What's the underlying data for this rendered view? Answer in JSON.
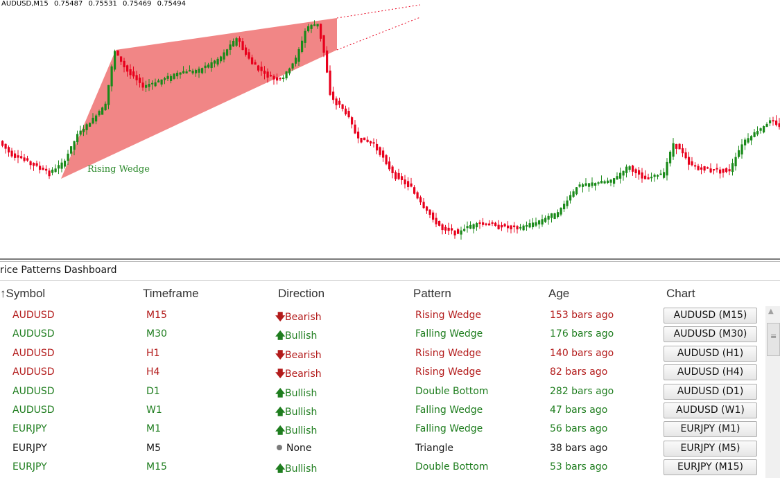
{
  "chart": {
    "symbol_tf": "AUDUSD,M15",
    "open": "0.75487",
    "high": "0.75531",
    "low": "0.75469",
    "close": "0.75494",
    "pattern_label": "Rising Wedge",
    "colors": {
      "bull": "#1a8a1a",
      "bear": "#e8001c",
      "wedge_fill": "#f08080",
      "projection": "#e8001c"
    }
  },
  "panel": {
    "title": "rice Patterns Dashboard",
    "headers": {
      "symbol": "Symbol",
      "sort_icon": "↑",
      "timeframe": "Timeframe",
      "direction": "Direction",
      "pattern": "Pattern",
      "age": "Age",
      "chart": "Chart"
    },
    "rows": [
      {
        "symbol": "AUDUSD",
        "timeframe": "M15",
        "direction": "Bearish",
        "pattern": "Rising Wedge",
        "age": "153 bars ago",
        "chart": "AUDUSD (M15)",
        "type": "bear"
      },
      {
        "symbol": "AUDUSD",
        "timeframe": "M30",
        "direction": "Bullish",
        "pattern": "Falling Wedge",
        "age": "176 bars ago",
        "chart": "AUDUSD (M30)",
        "type": "bull"
      },
      {
        "symbol": "AUDUSD",
        "timeframe": "H1",
        "direction": "Bearish",
        "pattern": "Rising Wedge",
        "age": "140 bars ago",
        "chart": "AUDUSD (H1)",
        "type": "bear"
      },
      {
        "symbol": "AUDUSD",
        "timeframe": "H4",
        "direction": "Bearish",
        "pattern": "Rising Wedge",
        "age": "82 bars ago",
        "chart": "AUDUSD (H4)",
        "type": "bear"
      },
      {
        "symbol": "AUDUSD",
        "timeframe": "D1",
        "direction": "Bullish",
        "pattern": "Double Bottom",
        "age": "282 bars ago",
        "chart": "AUDUSD (D1)",
        "type": "bull"
      },
      {
        "symbol": "AUDUSD",
        "timeframe": "W1",
        "direction": "Bullish",
        "pattern": "Falling Wedge",
        "age": "47 bars ago",
        "chart": "AUDUSD (W1)",
        "type": "bull"
      },
      {
        "symbol": "EURJPY",
        "timeframe": "M1",
        "direction": "Bullish",
        "pattern": "Falling Wedge",
        "age": "56 bars ago",
        "chart": "EURJPY (M1)",
        "type": "bull"
      },
      {
        "symbol": "EURJPY",
        "timeframe": "M5",
        "direction": "None",
        "pattern": "Triangle",
        "age": "38 bars ago",
        "chart": "EURJPY (M5)",
        "type": "none"
      },
      {
        "symbol": "EURJPY",
        "timeframe": "M15",
        "direction": "Bullish",
        "pattern": "Double Bottom",
        "age": "53 bars ago",
        "chart": "EURJPY (M15)",
        "type": "bull"
      }
    ],
    "icons": {
      "bear": "arrow-down-icon",
      "bull": "arrow-up-icon",
      "none": "dot-icon",
      "scroll_up": "scroll-up-arrow-icon",
      "scroll_grip": "scroll-grip-icon"
    }
  }
}
